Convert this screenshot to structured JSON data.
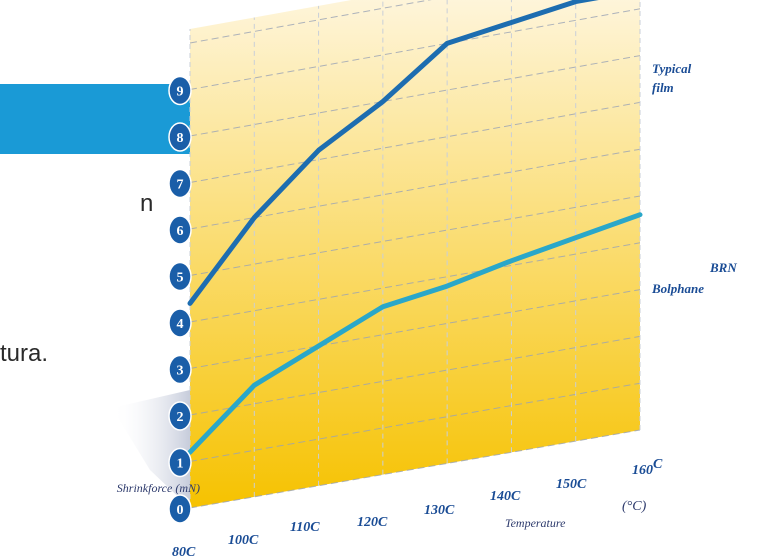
{
  "slide": {
    "text_fragments": [
      "n",
      "tura."
    ]
  },
  "chart_data": {
    "type": "line",
    "x": [
      "80C",
      "100C",
      "110C",
      "120C",
      "130C",
      "140C",
      "150C",
      "160"
    ],
    "x_unit_superscript": "C",
    "x_unit_label": "(°C)",
    "xlabel": "Temperature",
    "ylabel": "Shrinkforce (mN)",
    "y_ticks": [
      "0",
      "1",
      "2",
      "3",
      "4",
      "5",
      "6",
      "7",
      "8",
      "9"
    ],
    "ylim": [
      0,
      9
    ],
    "grid": true,
    "series": [
      {
        "name": "Typical film",
        "name_lines": [
          "Typical",
          "film"
        ],
        "color": "#1d6db0",
        "values": [
          4.4,
          6.0,
          7.2,
          8.0,
          9.0,
          9.2,
          9.4,
          9.4
        ]
      },
      {
        "name": "Bolphane BRN",
        "name_lines": [
          "Bolphane",
          "BRN"
        ],
        "color": "#2aa7c9",
        "values": [
          1.2,
          2.4,
          3.0,
          3.6,
          3.8,
          4.1,
          4.35,
          4.6
        ]
      }
    ],
    "colors": {
      "tick_badge": "#1a5ea8",
      "tick_text": "#ffffff",
      "series_label": "#1a4c95",
      "x_tick": "#1a4c95",
      "gradient_top": "#fffaf0",
      "gradient_bottom": "#f6c200"
    }
  }
}
